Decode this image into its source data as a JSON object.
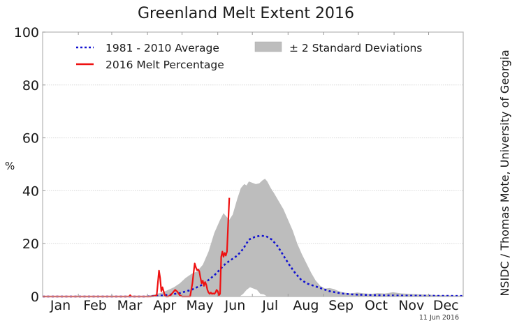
{
  "chart_data": {
    "type": "line",
    "title": "Greenland Melt Extent 2016",
    "xlabel": "",
    "ylabel": "%",
    "ylim": [
      0,
      100
    ],
    "xlim_day_of_year": [
      1,
      366
    ],
    "yticks": [
      0,
      20,
      40,
      60,
      80,
      100
    ],
    "grid": "horizontal dotted",
    "months": [
      "Jan",
      "Feb",
      "Mar",
      "Apr",
      "May",
      "Jun",
      "Jul",
      "Aug",
      "Sep",
      "Oct",
      "Nov",
      "Dec"
    ],
    "month_starts_day": [
      1,
      32,
      61,
      92,
      122,
      153,
      183,
      214,
      245,
      275,
      306,
      336
    ],
    "legend": {
      "placement": "top",
      "entries": [
        {
          "label": "1981 - 2010 Average",
          "style": "dotted",
          "color": "#1010d0"
        },
        {
          "label": "2016 Melt Percentage",
          "style": "solid",
          "color": "#ee1111"
        },
        {
          "label": "± 2 Standard Deviations",
          "style": "fill",
          "color": "#bdbdbd"
        }
      ]
    },
    "series": [
      {
        "name": "1981 - 2010 Average",
        "color": "#1010d0",
        "style": "dotted",
        "points": [
          [
            1,
            0
          ],
          [
            90,
            0
          ],
          [
            100,
            0.2
          ],
          [
            110,
            0.6
          ],
          [
            120,
            1.3
          ],
          [
            130,
            2.5
          ],
          [
            140,
            4.5
          ],
          [
            150,
            8
          ],
          [
            160,
            12.5
          ],
          [
            170,
            15.5
          ],
          [
            175,
            18
          ],
          [
            180,
            21.5
          ],
          [
            185,
            22.5
          ],
          [
            190,
            23
          ],
          [
            195,
            22.8
          ],
          [
            200,
            21.5
          ],
          [
            205,
            19
          ],
          [
            210,
            15.5
          ],
          [
            215,
            12
          ],
          [
            220,
            9
          ],
          [
            225,
            6.5
          ],
          [
            230,
            5
          ],
          [
            240,
            3.5
          ],
          [
            250,
            2
          ],
          [
            260,
            1.2
          ],
          [
            270,
            0.8
          ],
          [
            280,
            0.6
          ],
          [
            300,
            0.4
          ],
          [
            330,
            0.3
          ],
          [
            366,
            0.2
          ]
        ]
      },
      {
        "name": "± 2 Standard Deviations upper",
        "color": "#bdbdbd",
        "style": "fill-upper",
        "points": [
          [
            1,
            0
          ],
          [
            85,
            0
          ],
          [
            95,
            0.5
          ],
          [
            105,
            1.5
          ],
          [
            115,
            3.5
          ],
          [
            120,
            5
          ],
          [
            125,
            7
          ],
          [
            130,
            8.5
          ],
          [
            135,
            9.5
          ],
          [
            140,
            12
          ],
          [
            145,
            17
          ],
          [
            150,
            24
          ],
          [
            155,
            29
          ],
          [
            158,
            31.5
          ],
          [
            160,
            30.5
          ],
          [
            163,
            29
          ],
          [
            166,
            31
          ],
          [
            170,
            37
          ],
          [
            173,
            41
          ],
          [
            176,
            42.5
          ],
          [
            178,
            42
          ],
          [
            180,
            43.5
          ],
          [
            183,
            43
          ],
          [
            186,
            42.5
          ],
          [
            189,
            42.8
          ],
          [
            192,
            44
          ],
          [
            194,
            44.5
          ],
          [
            196,
            43.5
          ],
          [
            199,
            41
          ],
          [
            202,
            39
          ],
          [
            206,
            36
          ],
          [
            210,
            33
          ],
          [
            214,
            29
          ],
          [
            218,
            25
          ],
          [
            222,
            20
          ],
          [
            226,
            16
          ],
          [
            230,
            12.5
          ],
          [
            234,
            9
          ],
          [
            238,
            6
          ],
          [
            242,
            4
          ],
          [
            246,
            3
          ],
          [
            250,
            3.2
          ],
          [
            254,
            2.8
          ],
          [
            258,
            2
          ],
          [
            262,
            1.5
          ],
          [
            268,
            1.2
          ],
          [
            274,
            1.5
          ],
          [
            280,
            1.2
          ],
          [
            286,
            1
          ],
          [
            292,
            1.3
          ],
          [
            298,
            1.1
          ],
          [
            305,
            1.6
          ],
          [
            312,
            1.2
          ],
          [
            320,
            1
          ],
          [
            330,
            0.8
          ],
          [
            345,
            0.5
          ],
          [
            366,
            0.3
          ]
        ]
      },
      {
        "name": "± 2 Standard Deviations lower",
        "color": "#bdbdbd",
        "style": "fill-lower",
        "points": [
          [
            1,
            0
          ],
          [
            172,
            0
          ],
          [
            175,
            1
          ],
          [
            178,
            2.5
          ],
          [
            181,
            3.5
          ],
          [
            184,
            3
          ],
          [
            187,
            2.5
          ],
          [
            190,
            1
          ],
          [
            193,
            0.8
          ],
          [
            196,
            0
          ],
          [
            366,
            0
          ]
        ]
      },
      {
        "name": "2016 Melt Percentage",
        "color": "#ee1111",
        "style": "solid",
        "points": [
          [
            1,
            0
          ],
          [
            60,
            0
          ],
          [
            76,
            0
          ],
          [
            77,
            0.5
          ],
          [
            78,
            0
          ],
          [
            95,
            0
          ],
          [
            99,
            0.3
          ],
          [
            100,
            0.5
          ],
          [
            101,
            5
          ],
          [
            102,
            9.8
          ],
          [
            103,
            7
          ],
          [
            104,
            2
          ],
          [
            105,
            3.5
          ],
          [
            106,
            2
          ],
          [
            107,
            0.5
          ],
          [
            108,
            0
          ],
          [
            110,
            0
          ],
          [
            112,
            0.5
          ],
          [
            114,
            1.5
          ],
          [
            116,
            2.5
          ],
          [
            118,
            1.8
          ],
          [
            120,
            0.5
          ],
          [
            122,
            0
          ],
          [
            129,
            0
          ],
          [
            131,
            5
          ],
          [
            132,
            9
          ],
          [
            133,
            12.5
          ],
          [
            134,
            11
          ],
          [
            135,
            10
          ],
          [
            136,
            10.2
          ],
          [
            137,
            9.5
          ],
          [
            138,
            7
          ],
          [
            139,
            5
          ],
          [
            140,
            6
          ],
          [
            141,
            4
          ],
          [
            142,
            5.5
          ],
          [
            143,
            4.5
          ],
          [
            144,
            2.5
          ],
          [
            145,
            1.5
          ],
          [
            146,
            1
          ],
          [
            147,
            1.5
          ],
          [
            148,
            1
          ],
          [
            149,
            1.2
          ],
          [
            150,
            1
          ],
          [
            151,
            1.5
          ],
          [
            152,
            2.5
          ],
          [
            153,
            2
          ],
          [
            154,
            0.5
          ],
          [
            155,
            1
          ],
          [
            156,
            15
          ],
          [
            157,
            17
          ],
          [
            158,
            15
          ],
          [
            159,
            16.5
          ],
          [
            160,
            15.5
          ],
          [
            161,
            17
          ],
          [
            162,
            27
          ],
          [
            163,
            37.3
          ]
        ]
      }
    ]
  },
  "labels": {
    "credit": "NSIDC / Thomas Mote, University of Georgia",
    "date_stamp": "11 Jun 2016"
  }
}
